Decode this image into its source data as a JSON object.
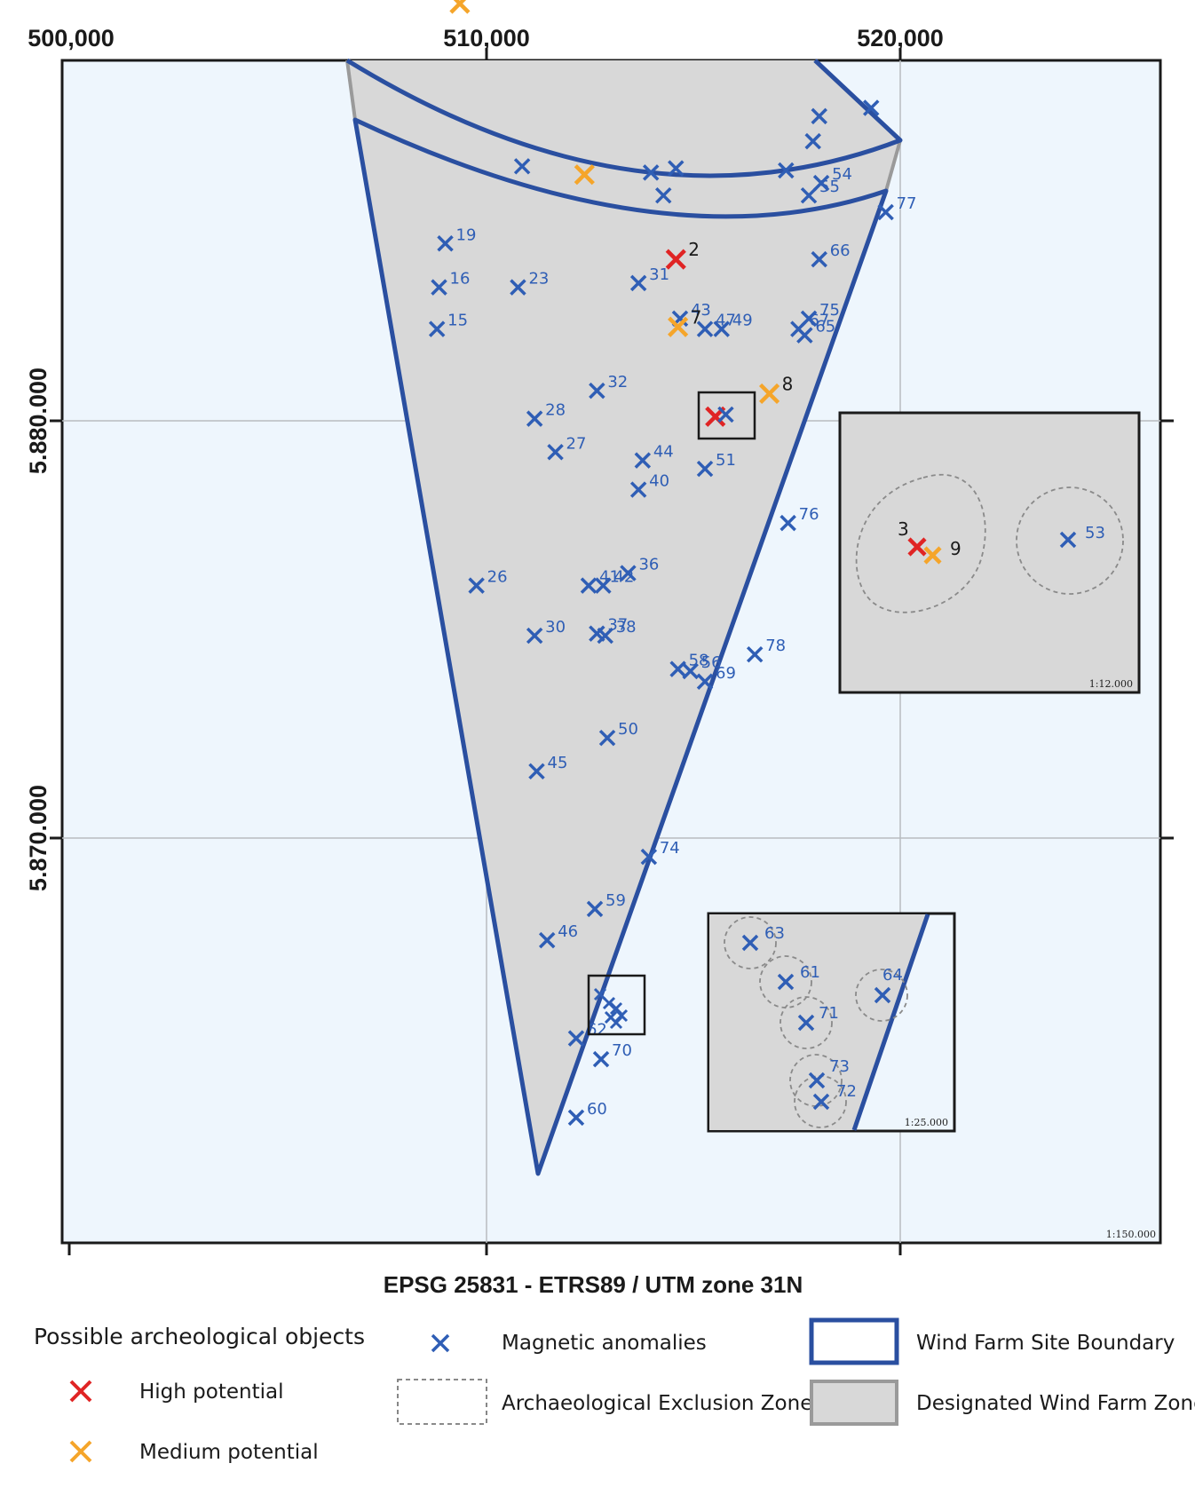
{
  "axes": {
    "x_ticks": [
      {
        "value": 500000,
        "label": "500,000"
      },
      {
        "value": 510000,
        "label": "510,000"
      },
      {
        "value": 520000,
        "label": "520,000"
      }
    ],
    "y_ticks": [
      {
        "value": 5880000,
        "label": "5.880.000"
      },
      {
        "value": 5870000,
        "label": "5.870.000"
      }
    ]
  },
  "crs_label": "EPSG 25831 - ETRS89 / UTM zone 31N",
  "main_scale": "1:150.000",
  "inset_upper_scale": "1:12.000",
  "inset_lower_scale": "1:25.000",
  "colors": {
    "ocean": "#eef6fd",
    "zone_fill": "#d8d8d8",
    "boundary": "#2a4fa0",
    "magnetic": "#2f5eb5",
    "high": "#e02424",
    "medium": "#f5a52a",
    "grid": "#b8bcc0"
  },
  "legend": {
    "title": "Possible archeological objects",
    "high": "High potential",
    "medium": "Medium potential",
    "magnetic": "Magnetic anomalies",
    "exclusion": "Archaeological Exclusion Zone",
    "boundary": "Wind Farm Site Boundary",
    "zone": "Designated Wind Farm Zone"
  },
  "markers": [
    {
      "x": 509400,
      "y": 5890000,
      "type": "medium",
      "label": ""
    },
    {
      "x": 515850,
      "y": 5891300,
      "type": "magnetic",
      "label": ""
    },
    {
      "x": 519300,
      "y": 5887500,
      "type": "magnetic",
      "label": ""
    },
    {
      "x": 518050,
      "y": 5887300,
      "type": "magnetic",
      "label": ""
    },
    {
      "x": 517900,
      "y": 5886700,
      "type": "magnetic",
      "label": ""
    },
    {
      "x": 510900,
      "y": 5886100,
      "type": "magnetic",
      "label": ""
    },
    {
      "x": 512400,
      "y": 5885900,
      "type": "medium",
      "label": ""
    },
    {
      "x": 514000,
      "y": 5885950,
      "type": "magnetic",
      "label": ""
    },
    {
      "x": 514600,
      "y": 5886050,
      "type": "magnetic",
      "label": ""
    },
    {
      "x": 514300,
      "y": 5885400,
      "type": "magnetic",
      "label": ""
    },
    {
      "x": 517250,
      "y": 5886000,
      "type": "magnetic",
      "label": ""
    },
    {
      "x": 518100,
      "y": 5885700,
      "type": "magnetic",
      "label": "54"
    },
    {
      "x": 517800,
      "y": 5885400,
      "type": "magnetic",
      "label": "55"
    },
    {
      "x": 519650,
      "y": 5885000,
      "type": "magnetic",
      "label": "77"
    },
    {
      "x": 509050,
      "y": 5884250,
      "type": "magnetic",
      "label": "19"
    },
    {
      "x": 514600,
      "y": 5883870,
      "type": "high",
      "label": "2"
    },
    {
      "x": 518050,
      "y": 5883870,
      "type": "magnetic",
      "label": "66"
    },
    {
      "x": 508900,
      "y": 5883200,
      "type": "magnetic",
      "label": "16"
    },
    {
      "x": 510800,
      "y": 5883200,
      "type": "magnetic",
      "label": "23"
    },
    {
      "x": 513700,
      "y": 5883300,
      "type": "magnetic",
      "label": "31"
    },
    {
      "x": 508850,
      "y": 5882200,
      "type": "magnetic",
      "label": "15"
    },
    {
      "x": 514700,
      "y": 5882450,
      "type": "magnetic",
      "label": "43"
    },
    {
      "x": 514650,
      "y": 5882250,
      "type": "medium",
      "label": "7"
    },
    {
      "x": 515300,
      "y": 5882200,
      "type": "magnetic",
      "label": "47"
    },
    {
      "x": 515700,
      "y": 5882200,
      "type": "magnetic",
      "label": "49"
    },
    {
      "x": 517800,
      "y": 5882450,
      "type": "magnetic",
      "label": "75"
    },
    {
      "x": 517550,
      "y": 5882200,
      "type": "magnetic",
      "label": "67"
    },
    {
      "x": 517700,
      "y": 5882050,
      "type": "magnetic",
      "label": "65"
    },
    {
      "x": 512700,
      "y": 5880720,
      "type": "magnetic",
      "label": "32"
    },
    {
      "x": 516850,
      "y": 5880650,
      "type": "medium",
      "label": "8"
    },
    {
      "x": 515550,
      "y": 5880100,
      "type": "high",
      "label": ""
    },
    {
      "x": 515800,
      "y": 5880150,
      "type": "magnetic",
      "label": ""
    },
    {
      "x": 511200,
      "y": 5880050,
      "type": "magnetic",
      "label": "28"
    },
    {
      "x": 511700,
      "y": 5879250,
      "type": "magnetic",
      "label": "27"
    },
    {
      "x": 513800,
      "y": 5879050,
      "type": "magnetic",
      "label": "44"
    },
    {
      "x": 515300,
      "y": 5878850,
      "type": "magnetic",
      "label": "51"
    },
    {
      "x": 513700,
      "y": 5878350,
      "type": "magnetic",
      "label": "40"
    },
    {
      "x": 517300,
      "y": 5877550,
      "type": "magnetic",
      "label": "76"
    },
    {
      "x": 513450,
      "y": 5876350,
      "type": "magnetic",
      "label": "36"
    },
    {
      "x": 509800,
      "y": 5876050,
      "type": "magnetic",
      "label": "26"
    },
    {
      "x": 512500,
      "y": 5876050,
      "type": "magnetic",
      "label": "41"
    },
    {
      "x": 512850,
      "y": 5876050,
      "type": "magnetic",
      "label": "42"
    },
    {
      "x": 511200,
      "y": 5874850,
      "type": "magnetic",
      "label": "30"
    },
    {
      "x": 512700,
      "y": 5874900,
      "type": "magnetic",
      "label": "37"
    },
    {
      "x": 512900,
      "y": 5874850,
      "type": "magnetic",
      "label": "38"
    },
    {
      "x": 516500,
      "y": 5874400,
      "type": "magnetic",
      "label": "78"
    },
    {
      "x": 514650,
      "y": 5874050,
      "type": "magnetic",
      "label": "58"
    },
    {
      "x": 514950,
      "y": 5874000,
      "type": "magnetic",
      "label": "56"
    },
    {
      "x": 515300,
      "y": 5873750,
      "type": "magnetic",
      "label": "69"
    },
    {
      "x": 512950,
      "y": 5872400,
      "type": "magnetic",
      "label": "50"
    },
    {
      "x": 511250,
      "y": 5871600,
      "type": "magnetic",
      "label": "45"
    },
    {
      "x": 513950,
      "y": 5869550,
      "type": "magnetic",
      "label": "74"
    },
    {
      "x": 512650,
      "y": 5868300,
      "type": "magnetic",
      "label": "59"
    },
    {
      "x": 511500,
      "y": 5867550,
      "type": "magnetic",
      "label": "46"
    },
    {
      "x": 512200,
      "y": 5865200,
      "type": "magnetic",
      "label": "62"
    },
    {
      "x": 512800,
      "y": 5864700,
      "type": "magnetic",
      "label": "70"
    },
    {
      "x": 512200,
      "y": 5863300,
      "type": "magnetic",
      "label": "60"
    }
  ],
  "inset_upper_markers": [
    {
      "type": "high",
      "label": "3"
    },
    {
      "type": "medium",
      "label": "9"
    },
    {
      "type": "magnetic",
      "label": "53"
    }
  ],
  "inset_lower_markers": [
    {
      "type": "magnetic",
      "label": "63"
    },
    {
      "type": "magnetic",
      "label": "61"
    },
    {
      "type": "magnetic",
      "label": "64"
    },
    {
      "type": "magnetic",
      "label": "71"
    },
    {
      "type": "magnetic",
      "label": "73"
    },
    {
      "type": "magnetic",
      "label": "72"
    }
  ]
}
